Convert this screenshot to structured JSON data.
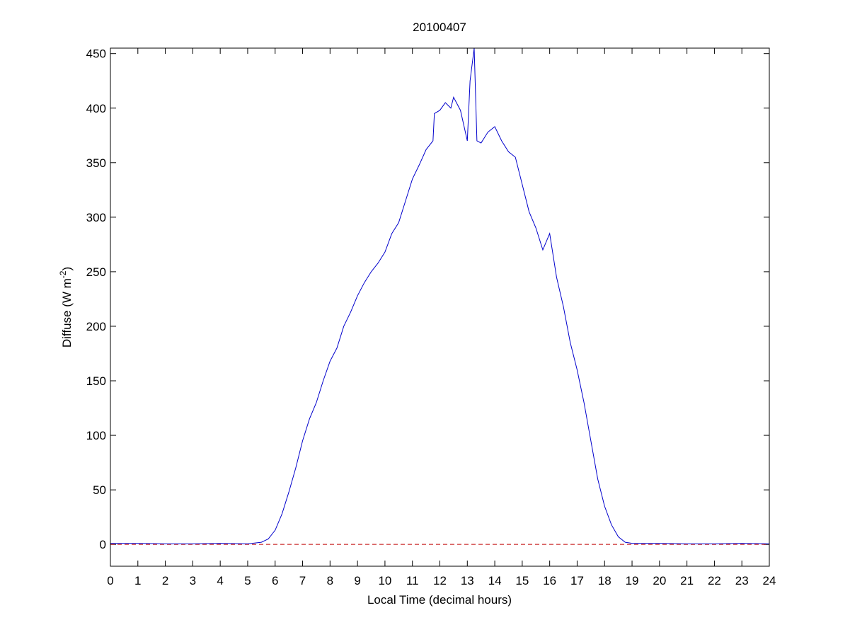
{
  "chart_data": {
    "type": "line",
    "title": "20100407",
    "xlabel": "Local Time (decimal hours)",
    "ylabel": [
      "Diffuse (W m",
      "-2",
      ")"
    ],
    "xlim": [
      0,
      24
    ],
    "ylim": [
      -20,
      455
    ],
    "xticks": [
      0,
      1,
      2,
      3,
      4,
      5,
      6,
      7,
      8,
      9,
      10,
      11,
      12,
      13,
      14,
      15,
      16,
      17,
      18,
      19,
      20,
      21,
      22,
      23,
      24
    ],
    "yticks": [
      0,
      50,
      100,
      150,
      200,
      250,
      300,
      350,
      400,
      450
    ],
    "grid": false,
    "reference_line": {
      "y": 0,
      "color": "#c00000",
      "style": "dashed"
    },
    "series": [
      {
        "color": "#0000cc",
        "x": [
          0,
          1,
          2,
          3,
          4,
          5,
          5.5,
          5.75,
          6,
          6.25,
          6.5,
          6.75,
          7,
          7.25,
          7.5,
          7.75,
          8,
          8.25,
          8.5,
          8.75,
          9,
          9.25,
          9.5,
          9.75,
          10,
          10.25,
          10.5,
          10.75,
          11,
          11.25,
          11.5,
          11.75,
          11.8,
          12,
          12.2,
          12.4,
          12.5,
          12.75,
          13,
          13.1,
          13.25,
          13.35,
          13.5,
          13.75,
          14,
          14.25,
          14.5,
          14.75,
          15,
          15.25,
          15.5,
          15.75,
          16,
          16.25,
          16.5,
          16.75,
          17,
          17.25,
          17.5,
          17.75,
          18,
          18.25,
          18.5,
          18.75,
          19,
          20,
          21,
          22,
          23,
          24
        ],
        "values": [
          1,
          1,
          0.5,
          0.5,
          1,
          0.5,
          2,
          5,
          13,
          28,
          48,
          70,
          95,
          115,
          130,
          150,
          168,
          180,
          200,
          213,
          228,
          240,
          250,
          258,
          268,
          285,
          295,
          315,
          335,
          348,
          362,
          370,
          395,
          398,
          405,
          400,
          410,
          398,
          370,
          425,
          455,
          370,
          368,
          378,
          383,
          370,
          360,
          355,
          330,
          305,
          290,
          270,
          285,
          245,
          218,
          185,
          160,
          130,
          95,
          60,
          35,
          18,
          7,
          2,
          1,
          1,
          0.5,
          0.5,
          1,
          0.5
        ]
      }
    ]
  }
}
